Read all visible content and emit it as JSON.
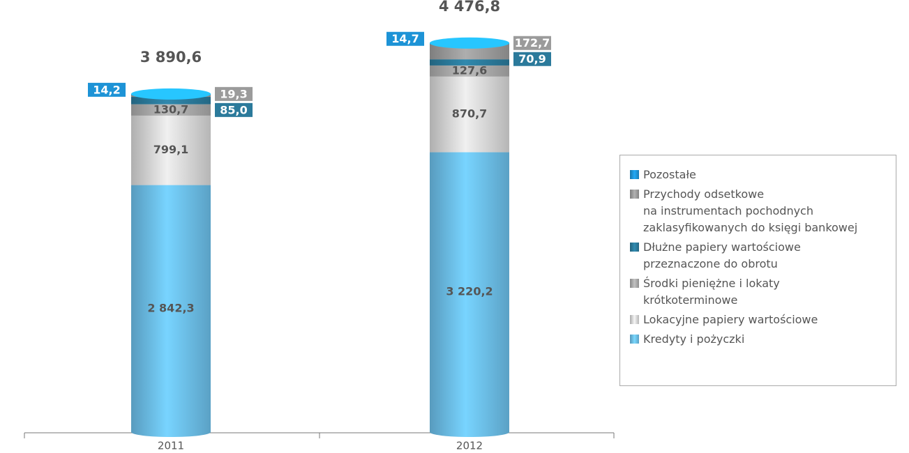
{
  "chart_data": {
    "type": "stacked-cylinder",
    "categories": [
      "2011",
      "2012"
    ],
    "totals": [
      3890.6,
      4476.8
    ],
    "total_labels": [
      "3 890,6",
      "4 476,8"
    ],
    "series": [
      {
        "name": "Kredyty i pożyczki",
        "color": "#6bbde8",
        "values": [
          2842.3,
          3220.2
        ],
        "value_labels": [
          "2 842,3",
          "3 220,2"
        ]
      },
      {
        "name": "Lokacyjne papiery wartościowe",
        "color": "#d6d6d6",
        "values": [
          799.1,
          870.7
        ],
        "value_labels": [
          "799,1",
          "870,7"
        ]
      },
      {
        "name": "Środki pieniężne i lokaty\nkrótkoterminowe",
        "color": "#a9a9a9",
        "values": [
          130.7,
          127.6
        ],
        "value_labels": [
          "130,7",
          "127,6"
        ]
      },
      {
        "name": "Dłużne papiery wartościowe\nprzeznaczone do obrotu",
        "color": "#2b7a9b",
        "values": [
          85.0,
          70.9
        ],
        "value_labels": [
          "85,0",
          "70,9"
        ]
      },
      {
        "name": "Przychody odsetkowe\nna instrumentach pochodnych\nzaklasyfikowanych do księgi bankowej",
        "color": "#9b9b9b",
        "values": [
          19.3,
          172.7
        ],
        "value_labels": [
          "19,3",
          "172,7"
        ]
      },
      {
        "name": "Pozostałe",
        "color": "#1d93d6",
        "values": [
          14.2,
          14.7
        ],
        "value_labels": [
          "14,2",
          "14,7"
        ]
      }
    ]
  }
}
